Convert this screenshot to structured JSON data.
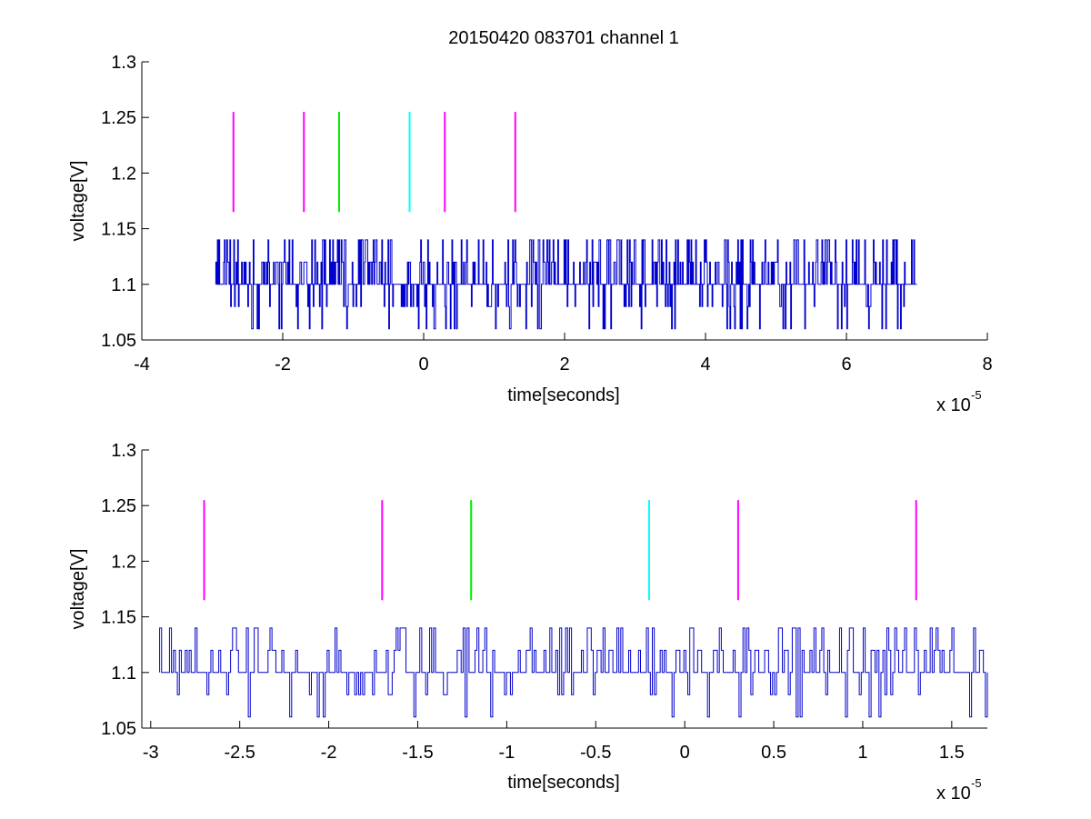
{
  "figure": {
    "title": "20150420 083701 channel 1"
  },
  "chart_data": [
    {
      "type": "line",
      "xlabel": "time[seconds]",
      "ylabel": "voltage[V]",
      "x_exponent_label": "x 10",
      "x_exponent": "-5",
      "xlim": [
        -4,
        8
      ],
      "ylim": [
        1.05,
        1.3
      ],
      "xticks": [
        -4,
        -2,
        0,
        2,
        4,
        6,
        8
      ],
      "xtick_labels": [
        "-4",
        "-2",
        "0",
        "2",
        "4",
        "6",
        "8"
      ],
      "yticks": [
        1.05,
        1.1,
        1.15,
        1.2,
        1.25,
        1.3
      ],
      "ytick_labels": [
        "1.05",
        "1.1",
        "1.15",
        "1.2",
        "1.25",
        "1.3"
      ],
      "grid": false,
      "signal": {
        "color": "#0000cc",
        "x_start": -2.95,
        "x_end": 7.0,
        "levels": [
          1.06,
          1.08,
          1.1,
          1.12,
          1.14
        ],
        "description_note": ""
      },
      "markers": [
        {
          "x": -2.7,
          "y_low": 1.165,
          "y_high": 1.255,
          "color": "#ff00ff"
        },
        {
          "x": -1.7,
          "y_low": 1.165,
          "y_high": 1.255,
          "color": "#ff00ff"
        },
        {
          "x": -1.2,
          "y_low": 1.165,
          "y_high": 1.255,
          "color": "#00ee00"
        },
        {
          "x": -0.2,
          "y_low": 1.165,
          "y_high": 1.255,
          "color": "#00ffff"
        },
        {
          "x": 0.3,
          "y_low": 1.165,
          "y_high": 1.255,
          "color": "#ff00ff"
        },
        {
          "x": 1.3,
          "y_low": 1.165,
          "y_high": 1.255,
          "color": "#ff00ff"
        }
      ]
    },
    {
      "type": "line",
      "xlabel": "time[seconds]",
      "ylabel": "voltage[V]",
      "x_exponent_label": "x 10",
      "x_exponent": "-5",
      "xlim": [
        -3.05,
        1.7
      ],
      "ylim": [
        1.05,
        1.3
      ],
      "xticks": [
        -3,
        -2.5,
        -2,
        -1.5,
        -1,
        -0.5,
        0,
        0.5,
        1,
        1.5
      ],
      "xtick_labels": [
        "-3",
        "-2.5",
        "-2",
        "-1.5",
        "-1",
        "-0.5",
        "0",
        "0.5",
        "1",
        "1.5"
      ],
      "yticks": [
        1.05,
        1.1,
        1.15,
        1.2,
        1.25,
        1.3
      ],
      "ytick_labels": [
        "1.05",
        "1.1",
        "1.15",
        "1.2",
        "1.25",
        "1.3"
      ],
      "grid": false,
      "signal": {
        "color": "#0000cc",
        "x_start": -2.95,
        "x_end": 1.7,
        "levels": [
          1.06,
          1.08,
          1.1,
          1.12,
          1.14
        ]
      },
      "markers": [
        {
          "x": -2.7,
          "y_low": 1.165,
          "y_high": 1.255,
          "color": "#ff00ff"
        },
        {
          "x": -1.7,
          "y_low": 1.165,
          "y_high": 1.255,
          "color": "#ff00ff"
        },
        {
          "x": -1.2,
          "y_low": 1.165,
          "y_high": 1.255,
          "color": "#00ee00"
        },
        {
          "x": -0.2,
          "y_low": 1.165,
          "y_high": 1.255,
          "color": "#00ffff"
        },
        {
          "x": 0.3,
          "y_low": 1.165,
          "y_high": 1.255,
          "color": "#ff00ff"
        },
        {
          "x": 1.3,
          "y_low": 1.165,
          "y_high": 1.255,
          "color": "#ff00ff"
        }
      ]
    }
  ]
}
